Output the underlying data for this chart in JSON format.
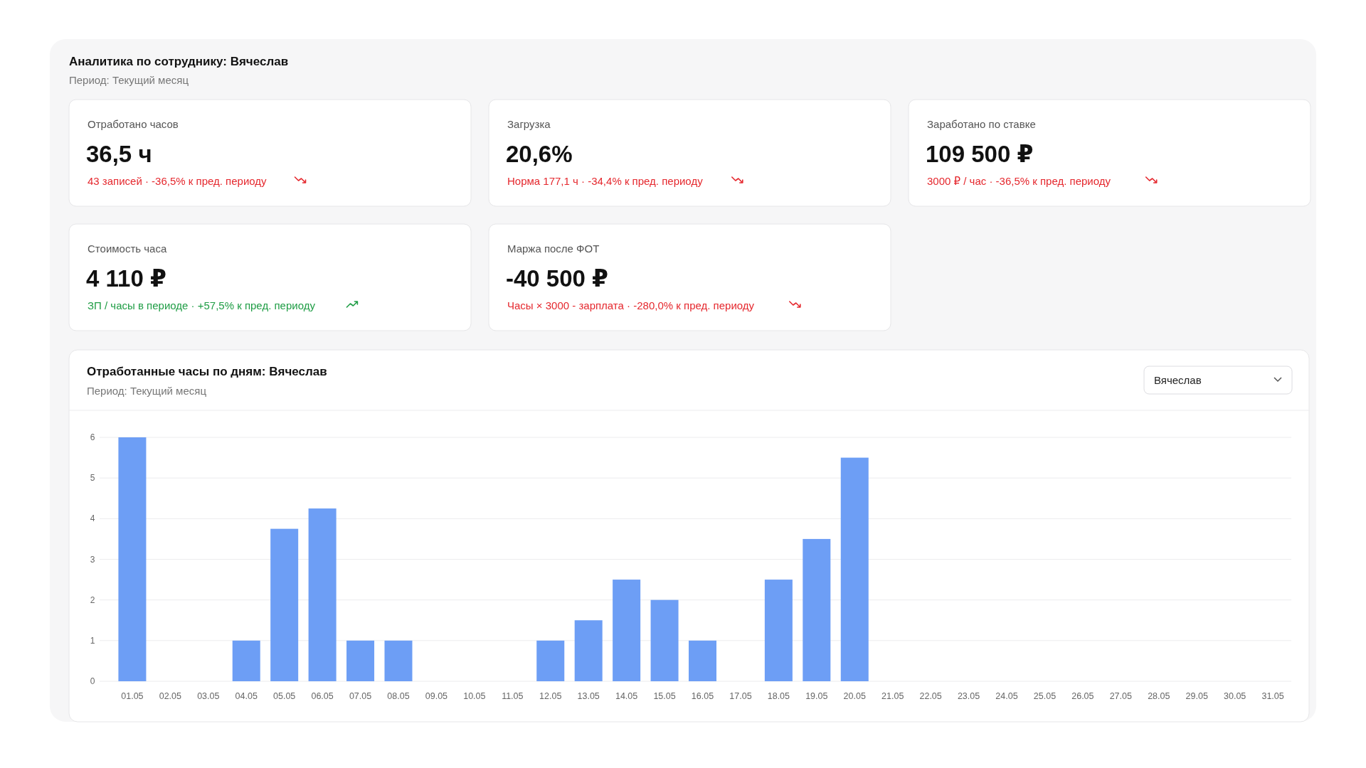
{
  "chart_data": [
    {
      "type": "other",
      "title": "Аналитика по сотруднику: Вячеслав",
      "subtitle": "Период: Текущий месяц",
      "annotations": [
        "Отработано часов",
        "36,5 ч",
        "43 записей · -36,5% к пред. периоду",
        "Загрузка",
        "20,6%",
        "Норма 177,1 ч · -34,4% к пред. периоду",
        "Заработано по ставке",
        "109 500 ₽",
        "3000 ₽ / час · -36,5% к пред. периоду",
        "Стоимость часа",
        "4 110 ₽",
        "ЗП / часы в периоде · +57,5% к пред. периоду",
        "Маржа после ФОТ",
        "-40 500 ₽",
        "Часы × 3000 - зарплата · -280,0% к пред. периоду"
      ],
      "colors": [
        "#e5282e",
        "#e5282e",
        "#e5282e",
        "#1f9d45",
        "#e5282e"
      ]
    },
    {
      "type": "bar",
      "title": "Отработанные часы по дням: Вячеслав",
      "subtitle": "Период: Текущий месяц",
      "annotations": [
        "Вячеслав"
      ],
      "categories": [
        "01.05",
        "02.05",
        "03.05",
        "04.05",
        "05.05",
        "06.05",
        "07.05",
        "08.05",
        "09.05",
        "10.05",
        "11.05",
        "12.05",
        "13.05",
        "14.05",
        "15.05",
        "16.05",
        "17.05",
        "18.05",
        "19.05",
        "20.05",
        "21.05",
        "22.05",
        "23.05",
        "24.05",
        "25.05",
        "26.05",
        "27.05",
        "28.05",
        "29.05",
        "30.05",
        "31.05"
      ],
      "values": [
        6,
        0,
        0,
        1,
        3.75,
        4.25,
        1,
        1,
        0,
        0,
        0,
        1,
        1.5,
        2.5,
        2,
        1,
        0,
        2.5,
        3.5,
        5.5,
        0,
        0,
        0,
        0,
        0,
        0,
        0,
        0,
        0,
        0,
        0
      ],
      "color": "#6d9ef5",
      "ylim": [
        0,
        6
      ],
      "yticks": [
        0,
        1,
        2,
        3,
        4,
        5,
        6
      ],
      "grid": "y"
    }
  ]
}
